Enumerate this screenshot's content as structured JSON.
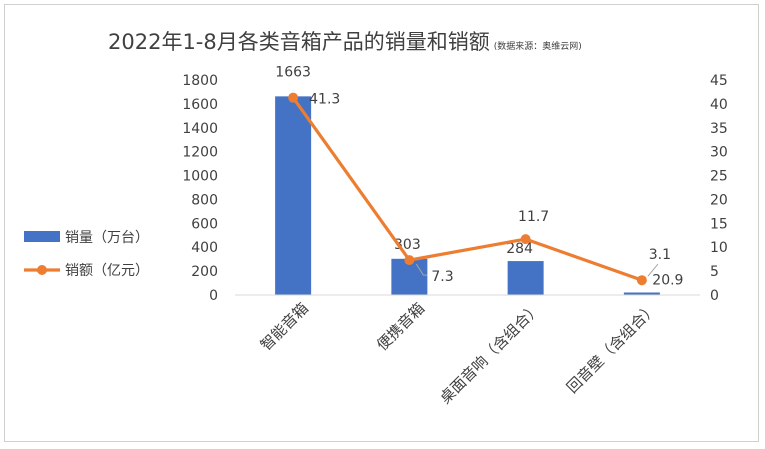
{
  "chart_data": {
    "type": "bar+line",
    "title": "2022年1-8月各类音箱产品的销量和销额",
    "source_note": "(数据来源：奥维云网)",
    "categories": [
      "智能音箱",
      "便携音箱",
      "桌面音响（含组合）",
      "回音壁（含组合）"
    ],
    "series": [
      {
        "name": "销量（万台）",
        "type": "bar",
        "axis": "left",
        "color": "#4472C4",
        "values": [
          1663,
          303,
          284,
          20.9
        ],
        "labels": [
          "1663",
          "303",
          "284",
          "20.9"
        ]
      },
      {
        "name": "销额（亿元）",
        "type": "line",
        "axis": "right",
        "color": "#ED7D31",
        "values": [
          41.3,
          7.3,
          11.7,
          3.1
        ],
        "labels": [
          "41.3",
          "7.3",
          "11.7",
          "3.1"
        ]
      }
    ],
    "y_left": {
      "min": 0,
      "max": 1800,
      "ticks": [
        "0",
        "200",
        "400",
        "600",
        "800",
        "1000",
        "1200",
        "1400",
        "1600",
        "1800"
      ]
    },
    "y_right": {
      "min": 0,
      "max": 45,
      "ticks": [
        "0",
        "5",
        "10",
        "15",
        "20",
        "25",
        "30",
        "35",
        "40",
        "45"
      ]
    },
    "grid": false,
    "legend_position": "left"
  }
}
